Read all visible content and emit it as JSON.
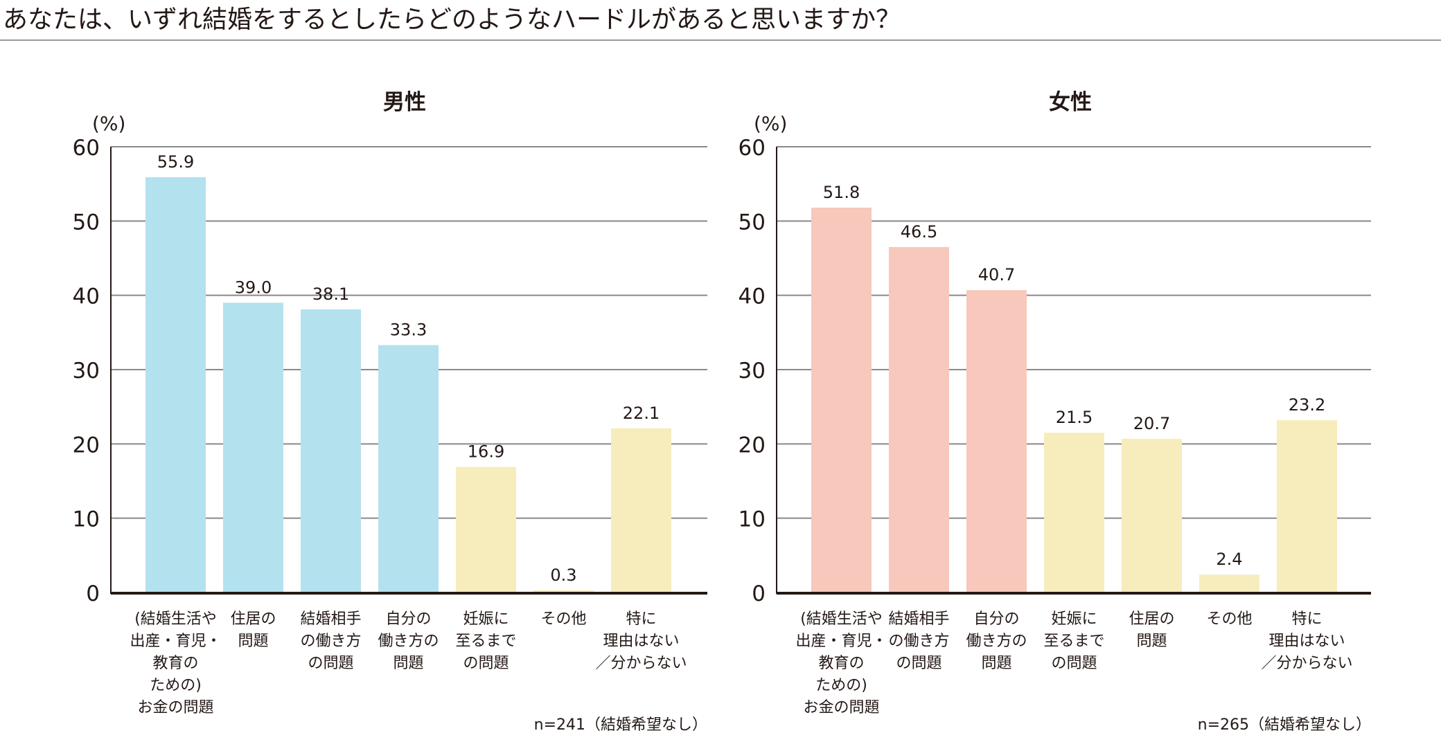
{
  "title": "あなたは、いずれ結婚をするとしたらどのようなハードルがあると思いますか？",
  "colors": {
    "blue": "#b3e1ee",
    "pink": "#f7c8bb",
    "yellow": "#f7ecbc",
    "grid": "#898989",
    "axis": "#231815"
  },
  "chart_data": [
    {
      "type": "bar",
      "title": "男性",
      "ylabel": "(%)",
      "ylim": [
        0,
        60
      ],
      "yticks": [
        "0",
        "10",
        "20",
        "30",
        "40",
        "50",
        "60"
      ],
      "grid": true,
      "categories": [
        [
          "(結婚生活や",
          "出産・育児・",
          "教育の",
          "ための)",
          "お金の問題"
        ],
        [
          "住居の",
          "問題"
        ],
        [
          "結婚相手",
          "の働き方",
          "の問題"
        ],
        [
          "自分の",
          "働き方の",
          "問題"
        ],
        [
          "妊娠に",
          "至るまで",
          "の問題"
        ],
        [
          "その他"
        ],
        [
          "特に",
          "理由はない",
          "／分からない"
        ]
      ],
      "values": [
        55.9,
        39.0,
        38.1,
        33.3,
        16.9,
        0.3,
        22.1
      ],
      "value_labels": [
        "55.9",
        "39.0",
        "38.1",
        "33.3",
        "16.9",
        "0.3",
        "22.1"
      ],
      "bar_colors": [
        "blue",
        "blue",
        "blue",
        "blue",
        "yellow",
        "yellow",
        "yellow"
      ],
      "note": "n=241（結婚希望なし）"
    },
    {
      "type": "bar",
      "title": "女性",
      "ylabel": "(%)",
      "ylim": [
        0,
        60
      ],
      "yticks": [
        "0",
        "10",
        "20",
        "30",
        "40",
        "50",
        "60"
      ],
      "grid": true,
      "categories": [
        [
          "(結婚生活や",
          "出産・育児・",
          "教育の",
          "ための)",
          "お金の問題"
        ],
        [
          "結婚相手",
          "の働き方",
          "の問題"
        ],
        [
          "自分の",
          "働き方の",
          "問題"
        ],
        [
          "妊娠に",
          "至るまで",
          "の問題"
        ],
        [
          "住居の",
          "問題"
        ],
        [
          "その他"
        ],
        [
          "特に",
          "理由はない",
          "／分からない"
        ]
      ],
      "values": [
        51.8,
        46.5,
        40.7,
        21.5,
        20.7,
        2.4,
        23.2
      ],
      "value_labels": [
        "51.8",
        "46.5",
        "40.7",
        "21.5",
        "20.7",
        "2.4",
        "23.2"
      ],
      "bar_colors": [
        "pink",
        "pink",
        "pink",
        "yellow",
        "yellow",
        "yellow",
        "yellow"
      ],
      "note": "n=265（結婚希望なし）"
    }
  ]
}
